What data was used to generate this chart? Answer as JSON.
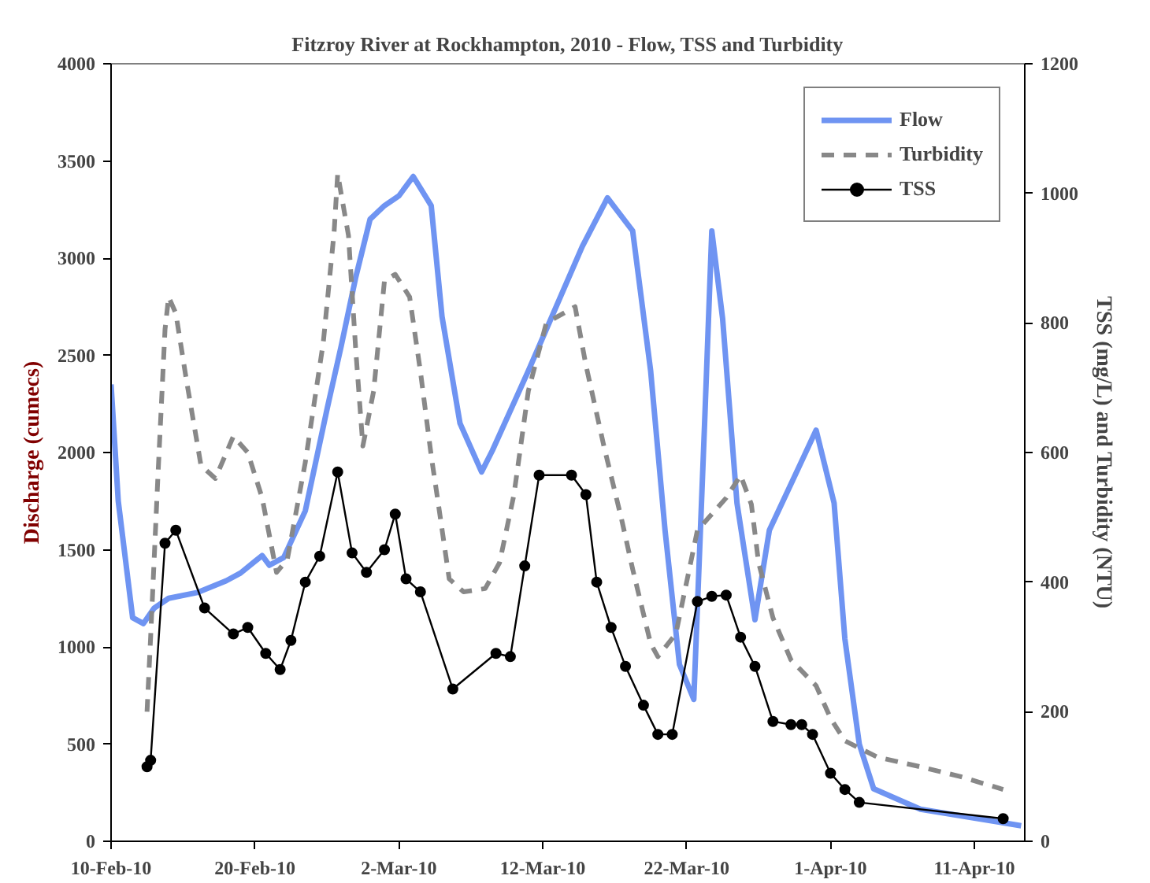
{
  "chart_data": {
    "type": "line",
    "title": "Fitzroy River at Rockhampton, 2010 - Flow, TSS and Turbidity",
    "ylabel": "Discharge (cumecs)",
    "y2label": "TSS (mg/L) and Turbidity (NTU)",
    "xlim": [
      "2010-02-10",
      "2010-04-14T12:00"
    ],
    "xticks": [
      {
        "value": "2010-02-10",
        "label": "10-Feb-10"
      },
      {
        "value": "2010-02-20",
        "label": "20-Feb-10"
      },
      {
        "value": "2010-03-02",
        "label": "2-Mar-10"
      },
      {
        "value": "2010-03-12",
        "label": "12-Mar-10"
      },
      {
        "value": "2010-03-22",
        "label": "22-Mar-10"
      },
      {
        "value": "2010-04-01",
        "label": "1-Apr-10"
      },
      {
        "value": "2010-04-11",
        "label": "11-Apr-10"
      }
    ],
    "ylim": [
      0,
      4000
    ],
    "yticks": [
      0,
      500,
      1000,
      1500,
      2000,
      2500,
      3000,
      3500,
      4000
    ],
    "y2lim": [
      0,
      1200
    ],
    "y2ticks": [
      0,
      200,
      400,
      600,
      800,
      1000,
      1200
    ],
    "grid": false,
    "legend": "top right",
    "series": [
      {
        "name": "Flow",
        "color": "#6f94f2",
        "line_style": "solid",
        "marker": "none",
        "x": [
          "2010-02-10T00:00",
          "2010-02-10T12:00",
          "2010-02-11T12:00",
          "2010-02-12T06:00",
          "2010-02-13T00:00",
          "2010-02-14T00:00",
          "2010-02-16T00:00",
          "2010-02-18T00:00",
          "2010-02-19T00:00",
          "2010-02-20T00:00",
          "2010-02-20T12:00",
          "2010-02-21T00:00",
          "2010-02-22T00:00",
          "2010-02-23T12:00",
          "2010-02-25T00:00",
          "2010-02-26T00:00",
          "2010-02-27T00:00",
          "2010-02-28T00:00",
          "2010-03-01T00:00",
          "2010-03-02T00:00",
          "2010-03-03T00:00",
          "2010-03-04T06:00",
          "2010-03-05T00:00",
          "2010-03-06T06:00",
          "2010-03-07T18:00",
          "2010-03-08T12:00",
          "2010-03-11T00:00",
          "2010-03-14T18:00",
          "2010-03-16T12:00",
          "2010-03-18T06:00",
          "2010-03-19T12:00",
          "2010-03-20T12:00",
          "2010-03-21T12:00",
          "2010-03-22T12:00",
          "2010-03-23T06:00",
          "2010-03-23T18:00",
          "2010-03-24T12:00",
          "2010-03-25T12:00",
          "2010-03-26T18:00",
          "2010-03-27T18:00",
          "2010-03-31T00:00",
          "2010-04-01T06:00",
          "2010-04-02T00:00",
          "2010-04-03T00:00",
          "2010-04-04T00:00",
          "2010-04-07T06:00",
          "2010-04-14T06:00"
        ],
        "values": [
          2350,
          1750,
          1150,
          1120,
          1200,
          1250,
          1280,
          1340,
          1380,
          1440,
          1470,
          1420,
          1460,
          1700,
          2220,
          2550,
          2900,
          3200,
          3270,
          3320,
          3420,
          3270,
          2700,
          2150,
          1900,
          2010,
          2420,
          3060,
          3310,
          3140,
          2420,
          1600,
          910,
          730,
          2150,
          3140,
          2690,
          1740,
          1140,
          1600,
          2115,
          1740,
          1040,
          500,
          270,
          165,
          80
        ]
      },
      {
        "name": "Turbidity",
        "color": "#888888",
        "axis": "y2",
        "line_style": "dashed",
        "marker": "none",
        "x": [
          "2010-02-12T12:00",
          "2010-02-12T18:00",
          "2010-02-13T06:00",
          "2010-02-13T18:00",
          "2010-02-14T00:00",
          "2010-02-14T12:00",
          "2010-02-15T06:00",
          "2010-02-16T06:00",
          "2010-02-17T06:00",
          "2010-02-18T12:00",
          "2010-02-19T12:00",
          "2010-02-20T12:00",
          "2010-02-21T12:00",
          "2010-02-22T06:00",
          "2010-02-23T12:00",
          "2010-02-24T18:00",
          "2010-02-25T12:00",
          "2010-02-25T18:00",
          "2010-02-26T12:00",
          "2010-02-27T00:00",
          "2010-02-27T12:00",
          "2010-02-28T06:00",
          "2010-03-01T00:00",
          "2010-03-01T18:00",
          "2010-03-02T18:00",
          "2010-03-03T12:00",
          "2010-03-04T06:00",
          "2010-03-04T18:00",
          "2010-03-05T12:00",
          "2010-03-06T12:00",
          "2010-03-08T00:00",
          "2010-03-09T00:00",
          "2010-03-10T00:00",
          "2010-03-11T00:00",
          "2010-03-12T06:00",
          "2010-03-14T06:00",
          "2010-03-15T00:00",
          "2010-03-16T06:00",
          "2010-03-17T12:00",
          "2010-03-18T06:00",
          "2010-03-19T12:00",
          "2010-03-20T00:00",
          "2010-03-21T06:00",
          "2010-03-22T18:00",
          "2010-03-23T18:00",
          "2010-03-24T18:00",
          "2010-03-25T18:00",
          "2010-03-26T12:00",
          "2010-03-27T00:00",
          "2010-03-28T00:00",
          "2010-03-29T06:00",
          "2010-03-31T00:00",
          "2010-04-01T00:00",
          "2010-04-02T00:00",
          "2010-04-04T06:00",
          "2010-04-07T06:00",
          "2010-04-10T00:00",
          "2010-04-13T00:00"
        ],
        "values": [
          200,
          315,
          560,
          790,
          840,
          815,
          710,
          580,
          560,
          625,
          600,
          530,
          415,
          435,
          585,
          770,
          940,
          1030,
          935,
          760,
          610,
          695,
          865,
          875,
          840,
          725,
          595,
          520,
          405,
          385,
          390,
          430,
          535,
          695,
          800,
          825,
          735,
          610,
          495,
          420,
          305,
          285,
          320,
          480,
          505,
          530,
          565,
          520,
          430,
          345,
          280,
          240,
          190,
          155,
          130,
          115,
          100,
          80
        ]
      },
      {
        "name": "TSS",
        "color": "#000000",
        "axis": "y2",
        "line_style": "solid",
        "marker": "circle",
        "x": [
          "2010-02-12T12:00",
          "2010-02-12T18:00",
          "2010-02-13T18:00",
          "2010-02-14T12:00",
          "2010-02-16T12:00",
          "2010-02-18T12:00",
          "2010-02-19T12:00",
          "2010-02-20T18:00",
          "2010-02-21T18:00",
          "2010-02-22T12:00",
          "2010-02-23T12:00",
          "2010-02-24T12:00",
          "2010-02-25T18:00",
          "2010-02-26T18:00",
          "2010-02-27T18:00",
          "2010-03-01T00:00",
          "2010-03-01T18:00",
          "2010-03-02T12:00",
          "2010-03-03T12:00",
          "2010-03-05T18:00",
          "2010-03-08T18:00",
          "2010-03-09T18:00",
          "2010-03-10T18:00",
          "2010-03-11T18:00",
          "2010-03-14T00:00",
          "2010-03-15T00:00",
          "2010-03-15T18:00",
          "2010-03-16T18:00",
          "2010-03-17T18:00",
          "2010-03-19T00:00",
          "2010-03-20T00:00",
          "2010-03-21T00:00",
          "2010-03-22T18:00",
          "2010-03-23T18:00",
          "2010-03-24T18:00",
          "2010-03-25T18:00",
          "2010-03-26T18:00",
          "2010-03-28T00:00",
          "2010-03-29T06:00",
          "2010-03-30T00:00",
          "2010-03-30T18:00",
          "2010-04-01T00:00",
          "2010-04-02T00:00",
          "2010-04-03T00:00",
          "2010-04-13T00:00"
        ],
        "values": [
          115,
          125,
          460,
          480,
          360,
          320,
          330,
          290,
          265,
          310,
          400,
          440,
          570,
          445,
          415,
          450,
          505,
          405,
          385,
          235,
          290,
          285,
          425,
          565,
          565,
          535,
          400,
          330,
          270,
          210,
          165,
          165,
          370,
          378,
          380,
          315,
          270,
          185,
          180,
          180,
          165,
          105,
          80,
          60,
          35
        ]
      }
    ]
  }
}
